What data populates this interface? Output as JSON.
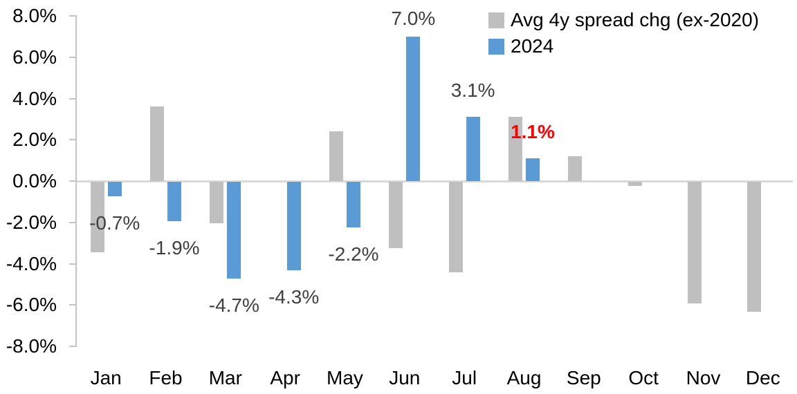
{
  "legend": {
    "series1": "Avg 4y spread chg (ex-2020)",
    "series2": "2024"
  },
  "colors": {
    "gray_bar": "#BFBFBF",
    "blue_bar": "#5B9BD5",
    "data_label": "#404040",
    "emphasis_label": "#FF0000",
    "axis_line": "#C3C3C3",
    "zero_line": "#D9D9D9",
    "axis_text": "#000000"
  },
  "chart_data": {
    "type": "bar",
    "title": "",
    "xlabel": "",
    "ylabel": "",
    "categories": [
      "Jan",
      "Feb",
      "Mar",
      "Apr",
      "May",
      "Jun",
      "Jul",
      "Aug",
      "Sep",
      "Oct",
      "Nov",
      "Dec"
    ],
    "series": [
      {
        "name": "Avg 4y spread chg (ex-2020)",
        "color_key": "gray_bar",
        "values": [
          -3.4,
          3.6,
          -2.0,
          0.0,
          2.4,
          -3.2,
          -4.4,
          3.1,
          1.2,
          -0.2,
          -5.9,
          -6.3
        ]
      },
      {
        "name": "2024",
        "color_key": "blue_bar",
        "values": [
          -0.7,
          -1.9,
          -4.7,
          -4.3,
          -2.2,
          7.0,
          3.1,
          1.1,
          null,
          null,
          null,
          null
        ]
      }
    ],
    "data_labels": [
      {
        "category": "Jan",
        "text": "-0.7%",
        "emphasis": false
      },
      {
        "category": "Feb",
        "text": "-1.9%",
        "emphasis": false
      },
      {
        "category": "Mar",
        "text": "-4.7%",
        "emphasis": false
      },
      {
        "category": "Apr",
        "text": "-4.3%",
        "emphasis": false
      },
      {
        "category": "May",
        "text": "-2.2%",
        "emphasis": false
      },
      {
        "category": "Jun",
        "text": "7.0%",
        "emphasis": false
      },
      {
        "category": "Jul",
        "text": "3.1%",
        "emphasis": false
      },
      {
        "category": "Aug",
        "text": "1.1%",
        "emphasis": true
      }
    ],
    "y_tick_labels": [
      "8.0%",
      "6.0%",
      "4.0%",
      "2.0%",
      "0.0%",
      "-2.0%",
      "-4.0%",
      "-6.0%",
      "-8.0%"
    ],
    "y_tick_values": [
      8,
      6,
      4,
      2,
      0,
      -2,
      -4,
      -6,
      -8
    ],
    "ylim": [
      -8,
      8
    ],
    "grid": "zero-line-only",
    "legend_position": "top-right"
  }
}
